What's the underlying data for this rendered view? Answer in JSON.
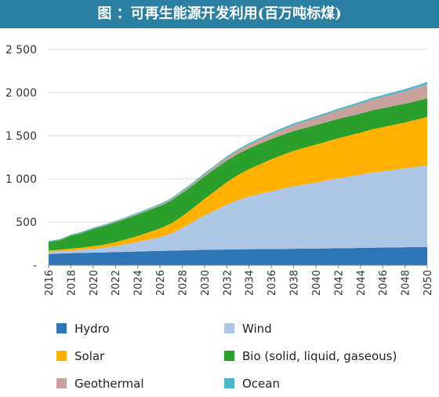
{
  "title": "图 ：可再生能源开发利用(百万吨标煤)",
  "colors": {
    "title_bar": "#2b7fa3",
    "Hydro": "#2e75b6",
    "Wind": "#adc6e6",
    "Solar": "#ffb000",
    "Bio (solid, liquid, gaseous)": "#2ca02c",
    "Geothermal": "#c9a19c",
    "Ocean": "#4bb8c8",
    "gridline": "#d9d9d9"
  },
  "chart_data": {
    "type": "area",
    "stacked": true,
    "title": "图 ：可再生能源开发利用(百万吨标煤)",
    "xlabel": "",
    "ylabel": "",
    "ylim": [
      0,
      2500
    ],
    "yticks": [
      0,
      500,
      1000,
      1500,
      2000,
      2500
    ],
    "ytick_labels": [
      "-",
      "500",
      "1 000",
      "1 500",
      "2 000",
      "2 500"
    ],
    "xtick_labels": [
      "2016",
      "2018",
      "2020",
      "2022",
      "2024",
      "2026",
      "2028",
      "2030",
      "2032",
      "2034",
      "2036",
      "2038",
      "2040",
      "2042",
      "2044",
      "2046",
      "2048",
      "2050"
    ],
    "grid": "horizontal",
    "legend": "bottom",
    "x": [
      2016,
      2017,
      2018,
      2019,
      2020,
      2021,
      2022,
      2023,
      2024,
      2025,
      2026,
      2027,
      2028,
      2029,
      2030,
      2031,
      2032,
      2033,
      2034,
      2035,
      2036,
      2037,
      2038,
      2039,
      2040,
      2041,
      2042,
      2043,
      2044,
      2045,
      2046,
      2047,
      2048,
      2049,
      2050
    ],
    "series": [
      {
        "name": "Hydro",
        "values": [
          130,
          135,
          140,
          142,
          145,
          148,
          152,
          155,
          158,
          162,
          165,
          168,
          172,
          175,
          178,
          180,
          182,
          184,
          185,
          186,
          187,
          188,
          190,
          191,
          192,
          194,
          196,
          198,
          200,
          202,
          204,
          206,
          208,
          210,
          212
        ]
      },
      {
        "name": "Wind",
        "values": [
          25,
          28,
          32,
          38,
          45,
          55,
          70,
          90,
          110,
          135,
          160,
          200,
          260,
          330,
          400,
          460,
          520,
          570,
          610,
          640,
          670,
          700,
          725,
          745,
          765,
          790,
          810,
          830,
          850,
          870,
          885,
          900,
          915,
          930,
          945
        ]
      },
      {
        "name": "Solar",
        "values": [
          15,
          17,
          20,
          24,
          30,
          36,
          45,
          55,
          70,
          85,
          100,
          115,
          135,
          160,
          190,
          225,
          260,
          290,
          320,
          345,
          370,
          390,
          410,
          425,
          440,
          450,
          465,
          475,
          485,
          500,
          510,
          520,
          530,
          545,
          560
        ]
      },
      {
        "name": "Bio (solid, liquid, gaseous)",
        "values": [
          100,
          110,
          150,
          170,
          200,
          215,
          230,
          240,
          250,
          255,
          260,
          265,
          270,
          265,
          260,
          255,
          250,
          245,
          240,
          238,
          235,
          232,
          230,
          228,
          226,
          225,
          224,
          223,
          222,
          221,
          220,
          219,
          218,
          217,
          216
        ]
      },
      {
        "name": "Geothermal",
        "values": [
          3,
          3,
          4,
          4,
          5,
          6,
          7,
          8,
          9,
          10,
          12,
          14,
          17,
          20,
          24,
          28,
          33,
          38,
          43,
          49,
          55,
          62,
          69,
          76,
          83,
          90,
          98,
          106,
          114,
          122,
          130,
          138,
          146,
          155,
          165
        ]
      },
      {
        "name": "Ocean",
        "values": [
          8,
          8,
          9,
          9,
          10,
          10,
          11,
          11,
          12,
          12,
          13,
          13,
          14,
          14,
          15,
          15,
          16,
          16,
          17,
          17,
          18,
          18,
          19,
          19,
          20,
          20,
          21,
          21,
          22,
          22,
          23,
          23,
          24,
          24,
          25
        ]
      }
    ]
  },
  "legend": {
    "items": [
      {
        "label": "Hydro",
        "color": "#2e75b6"
      },
      {
        "label": "Wind",
        "color": "#adc6e6"
      },
      {
        "label": "Solar",
        "color": "#ffb000"
      },
      {
        "label": "Bio (solid, liquid, gaseous)",
        "color": "#2ca02c"
      },
      {
        "label": "Geothermal",
        "color": "#c9a19c"
      },
      {
        "label": "Ocean",
        "color": "#4bb8c8"
      }
    ]
  }
}
